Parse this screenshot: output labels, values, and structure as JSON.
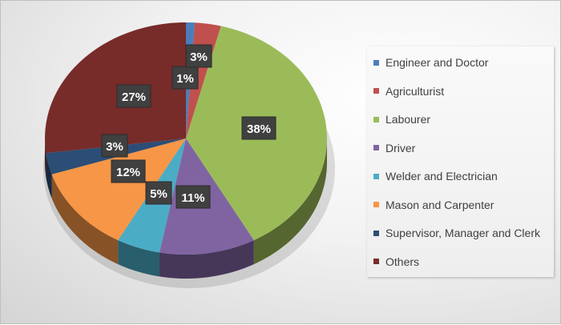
{
  "chart_data": {
    "type": "pie",
    "style": "3d",
    "title": "",
    "legend_position": "right",
    "categories": [
      "Engineer and Doctor",
      "Agriculturist",
      "Labourer",
      "Driver",
      "Welder and Electrician",
      "Mason and Carpenter",
      "Supervisor, Manager and Clerk",
      "Others"
    ],
    "values": [
      1,
      3,
      38,
      11,
      5,
      12,
      3,
      27
    ],
    "labels": [
      "1%",
      "3%",
      "38%",
      "11%",
      "5%",
      "12%",
      "3%",
      "27%"
    ],
    "colors": [
      "#4a7ebb",
      "#c0504d",
      "#9bbb59",
      "#8064a2",
      "#4bacc6",
      "#f79646",
      "#2c4d75",
      "#772c2a"
    ]
  }
}
